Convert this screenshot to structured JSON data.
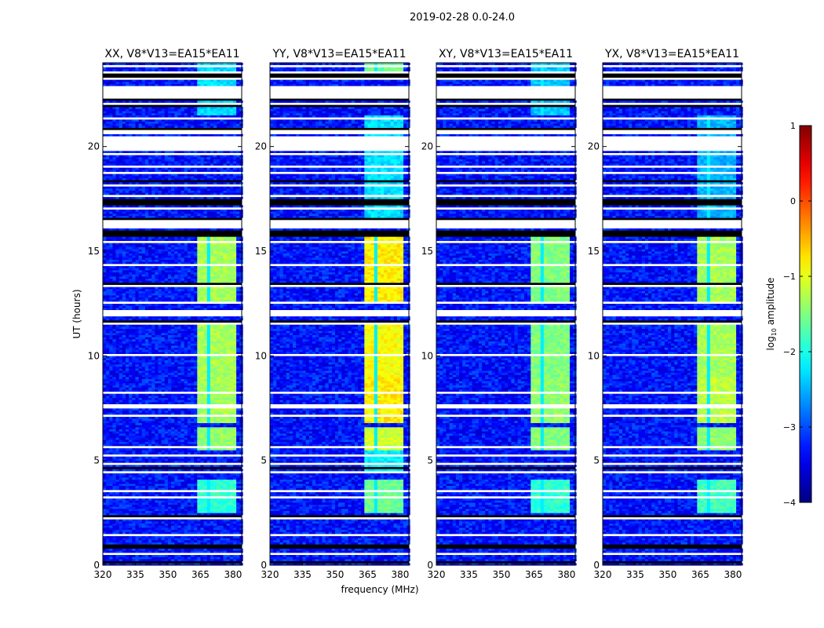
{
  "chart_data": {
    "type": "heatmap",
    "title": "2019-02-28 0.0-24.0",
    "xlabel": "frequency (MHz)",
    "ylabel": "UT (hours)",
    "xlim": [
      320,
      384
    ],
    "ylim": [
      0,
      24
    ],
    "xticks": [
      320,
      335,
      350,
      365,
      380
    ],
    "xtick_labels": [
      "320",
      "335",
      "350",
      "365",
      "380"
    ],
    "yticks": [
      0,
      5,
      10,
      15,
      20
    ],
    "ytick_labels": [
      "0",
      "5",
      "10",
      "15",
      "20"
    ],
    "colorbar": {
      "label": "log10 amplitude",
      "label_main": "log",
      "label_sub": "10",
      "label_rest": " amplitude",
      "range": [
        -4,
        1
      ],
      "ticks": [
        1,
        0,
        -1,
        -2,
        -3,
        -4
      ],
      "tick_labels": [
        "1",
        "0",
        "−1",
        "−2",
        "−3",
        "−4"
      ],
      "colormap": "jet"
    },
    "background_level": -3.3,
    "band_channels_mhz": [
      [
        364,
        368.5
      ],
      [
        369,
        373.5
      ],
      [
        374,
        378.5
      ],
      [
        379,
        381
      ]
    ],
    "flagged_hours": [
      [
        0.55,
        0.65
      ],
      [
        1.05,
        1.15
      ],
      [
        1.45,
        1.55
      ],
      [
        2.2,
        2.35
      ],
      [
        3.2,
        3.3
      ],
      [
        3.55,
        3.65
      ],
      [
        4.4,
        4.5
      ],
      [
        4.75,
        4.85
      ],
      [
        5.2,
        5.3
      ],
      [
        5.55,
        5.65
      ],
      [
        7.05,
        7.15
      ],
      [
        7.5,
        7.65
      ],
      [
        8.2,
        8.3
      ],
      [
        9.95,
        10.05
      ],
      [
        11.5,
        11.6
      ],
      [
        11.85,
        12.2
      ],
      [
        12.45,
        12.55
      ],
      [
        13.25,
        13.4
      ],
      [
        14.3,
        14.4
      ],
      [
        15.4,
        15.5
      ],
      [
        16.05,
        16.5
      ],
      [
        16.95,
        17.1
      ],
      [
        17.55,
        17.65
      ],
      [
        18.05,
        18.15
      ],
      [
        18.65,
        18.75
      ],
      [
        19.0,
        19.1
      ],
      [
        19.6,
        19.7
      ],
      [
        19.85,
        20.5
      ],
      [
        20.65,
        20.8
      ],
      [
        21.35,
        21.45
      ],
      [
        22.0,
        22.1
      ],
      [
        22.3,
        22.95
      ],
      [
        23.2,
        23.3
      ],
      [
        23.55,
        23.65
      ],
      [
        23.8,
        23.9
      ]
    ],
    "black_hours": [
      [
        0.8,
        1.0
      ],
      [
        0.15,
        0.2
      ],
      [
        2.35,
        2.4
      ],
      [
        4.6,
        4.7
      ],
      [
        11.6,
        11.7
      ],
      [
        13.4,
        13.5
      ],
      [
        15.7,
        16.0
      ],
      [
        16.5,
        16.6
      ],
      [
        17.2,
        17.5
      ],
      [
        18.3,
        18.4
      ],
      [
        20.8,
        20.9
      ],
      [
        21.9,
        22.0
      ],
      [
        22.2,
        22.3
      ],
      [
        23.35,
        23.5
      ]
    ],
    "panels": [
      {
        "title": "XX, V8*V13=EA15*EA11",
        "band_levels": [
          [
            2.5,
            4.1,
            -1.9
          ],
          [
            5.5,
            6.6,
            -1.4
          ],
          [
            6.8,
            9.0,
            -1.3
          ],
          [
            9.0,
            11.5,
            -1.3
          ],
          [
            12.5,
            16.0,
            -1.3
          ],
          [
            21.5,
            24,
            -2.3
          ]
        ]
      },
      {
        "title": "YY, V8*V13=EA15*EA11",
        "band_levels": [
          [
            2.5,
            4.1,
            -1.6
          ],
          [
            4.5,
            5.5,
            -2.2
          ],
          [
            5.5,
            6.6,
            -1.1
          ],
          [
            6.8,
            9.0,
            -0.8
          ],
          [
            9.0,
            11.5,
            -0.9
          ],
          [
            12.5,
            16.0,
            -0.8
          ],
          [
            16.5,
            21.5,
            -2.3
          ],
          [
            23.3,
            24,
            -1.6
          ]
        ]
      },
      {
        "title": "XY, V8*V13=EA15*EA11",
        "band_levels": [
          [
            2.5,
            4.1,
            -1.9
          ],
          [
            5.5,
            6.6,
            -1.5
          ],
          [
            6.8,
            9.0,
            -1.4
          ],
          [
            9.0,
            11.5,
            -1.5
          ],
          [
            12.5,
            16.0,
            -1.5
          ],
          [
            21.5,
            24,
            -2.4
          ]
        ]
      },
      {
        "title": "YX, V8*V13=EA15*EA11",
        "band_levels": [
          [
            2.5,
            4.1,
            -1.8
          ],
          [
            5.5,
            6.6,
            -1.4
          ],
          [
            6.8,
            9.0,
            -1.2
          ],
          [
            9.0,
            11.5,
            -1.3
          ],
          [
            12.5,
            16.0,
            -1.3
          ],
          [
            16.5,
            21.5,
            -2.5
          ]
        ]
      }
    ]
  }
}
